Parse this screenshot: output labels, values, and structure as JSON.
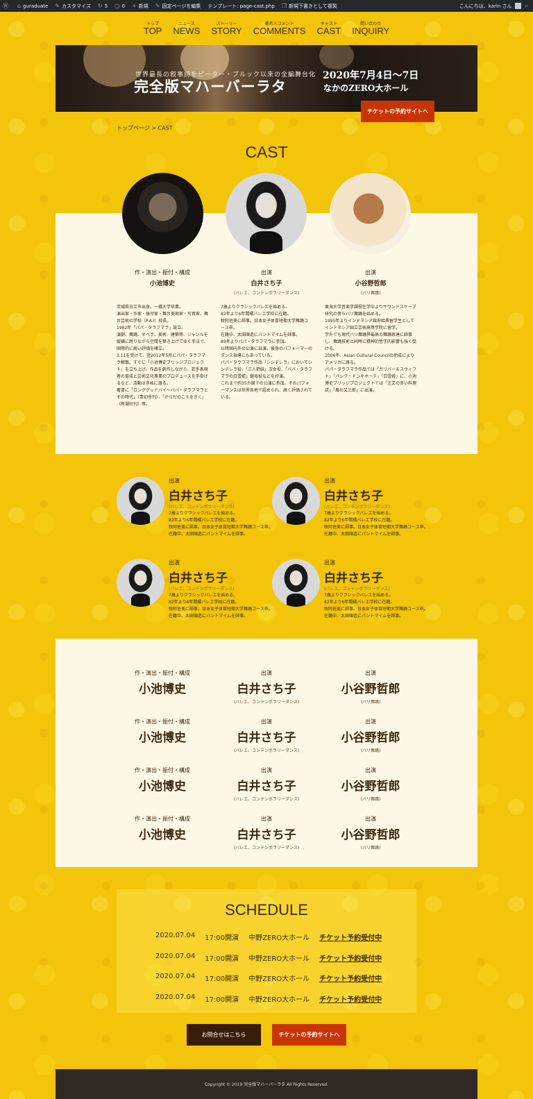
{
  "adminbar": {
    "site": "guraduate",
    "customize": "カスタマイズ",
    "updates": "5",
    "comments": "0",
    "new": "新規",
    "edit": "固定ページを編集",
    "template": "テンプレート: page-cast.php",
    "duplicate": "新規下書きとして複製",
    "greeting": "こんにちは、karin さん"
  },
  "nav": [
    {
      "jp": "トップ",
      "en": "TOP"
    },
    {
      "jp": "ニュース",
      "en": "NEWS"
    },
    {
      "jp": "ストーリー",
      "en": "STORY"
    },
    {
      "jp": "著名人コメント",
      "en": "COMMENTS"
    },
    {
      "jp": "キャスト",
      "en": "CAST"
    },
    {
      "jp": "問い合わせ",
      "en": "INQUIRY"
    }
  ],
  "hero": {
    "subtitle": "世界最長の叙事詩をピーター・ブルック以来の全編舞台化",
    "title": "完全版マハーバーラタ",
    "date": "2020年7月4日〜7日",
    "venue": "なかのZERO大ホール",
    "ticket_label": "チケットの予約サイトへ"
  },
  "breadcrumb": "トップページ > CAST",
  "cast_title": "CAST",
  "cast_main": [
    {
      "role": "作・演出・振付・構成",
      "name": "小池博史",
      "genre": "",
      "bio": "茨城県日立市出身。一橋大学卒業。\n演出家・作家・振付家・舞台美術家・写真家、舞台芸術の学校（P.A.I）校長。\n1982年「パパ・タラフマラ」設立。\n演劇、舞踊、オペラ、美術、建築等、ジャンルを縦横に跨りながら空間を築き上げてゆく手法で、国際的に高い評価を確立。\n3.11を受けて、翌2012年5月にパパ・タラフマラ解散。すぐに「小池博史ブリッジプロジェクト」を立ち上げ、作品を創作しながら、若手表現者の育成と芸術文化事業のプロデュースを手掛けるなど、活動は多岐に渡る。\n著書に「ロンググッドバイ〜パパ・タラフマラとその時代」（青幻舎刊）、「からだのこえをきく」（新潮社刊）等。"
    },
    {
      "role": "出演",
      "name": "白井さち子",
      "genre": "(バレエ、コンテンポラリーダンス)",
      "bio": "7歳よりクラシックバレエを始める。\n82年より6年間橘バレエ学校に在籍。\n牧阿佐美に師事。日本女子体育短期大学舞踊コース卒。\n在籍中、太田順造にパントマイムを師事。\n89年よりパパ・タラフマラに参加。\n以降国内外の公演に出演。後身のパフォーマーのダンス指導にもあっている。\nパパ・タラフマラ作品「シンデレラ」においてシンデレラ役、「三人姉妹」次女役、「パパ・タラフマラの白雪姫」継母役などを好演。\nこれまで約35カ国での公演に参加。そのパフォーマンスは世界各地で認められ、高く評価されている。"
    },
    {
      "role": "出演",
      "name": "小谷野哲郎",
      "genre": "(バリ舞踊)",
      "bio": "東海大学音楽学課程在学中よりサウンドスケープ研究の傍らバリ舞踊を始める。\n1995年よりインドネシア政府給費留学生としてインドネシア国立芸術高等学院に留学。\n学外でも現代バリ舞踊界最高の舞踊家達に師事し、舞踊技術と同時に精神的哲学的影響も強く受ける。\n2006年、Asian Cultural Councilの助成によりアメリカに渡る。\nパパ・タラフマラ作品では「ガリバー＆スウィフト」「パンク・ドンキホーテ」「白雪姫」に、小池博史ブリッジプロジェクトでは「注文の多い料理店」「風の又三郎」に出演。"
    }
  ],
  "cast_grid": [
    {
      "role": "出演",
      "name": "白井さち子",
      "genre": "(バレエ、コンテンポラリーダンス)",
      "bio": "7歳よりクラシックバレエを始める。\n82年より6年間橘バレエ学校に在籍。\n牧阿佐美に師事。日本女子体育短期大学舞踊コース卒。\n在籍中、太田順造にパントマイムを師事。"
    },
    {
      "role": "出演",
      "name": "白井さち子",
      "genre": "(バレエ、コンテンポラリーダンス)",
      "bio": "7歳よりクラシックバレエを始める。\n82年より6年間橘バレエ学校に在籍。\n牧阿佐美に師事。日本女子体育短期大学舞踊コース卒。\n在籍中、太田順造にパントマイムを師事。"
    },
    {
      "role": "出演",
      "name": "白井さち子",
      "genre": "(バレエ、コンテンポラリーダンス)",
      "bio": "7歳よりクラシックバレエを始める。\n82年より6年間橘バレエ学校に在籍。\n牧阿佐美に師事。日本女子体育短期大学舞踊コース卒。\n在籍中、太田順造にパントマイムを師事。"
    },
    {
      "role": "出演",
      "name": "白井さち子",
      "genre": "(バレエ、コンテンポラリーダンス)",
      "bio": "7歳よりクラシックバレエを始める。\n82年より6年間橘バレエ学校に在籍。\n牧阿佐美に師事。日本女子体育短期大学舞踊コース卒。\n在籍中、太田順造にパントマイムを師事。"
    }
  ],
  "names_grid": [
    [
      {
        "role": "作・演出・振付・構成",
        "name": "小池博史",
        "genre": ""
      },
      {
        "role": "出演",
        "name": "白井さち子",
        "genre": "(バレエ、コンテンポラリーダンス)"
      },
      {
        "role": "出演",
        "name": "小谷野哲郎",
        "genre": "(バリ舞踊)"
      }
    ],
    [
      {
        "role": "作・演出・振付・構成",
        "name": "小池博史",
        "genre": ""
      },
      {
        "role": "出演",
        "name": "白井さち子",
        "genre": "(バレエ、コンテンポラリーダンス)"
      },
      {
        "role": "出演",
        "name": "小谷野哲郎",
        "genre": "(バリ舞踊)"
      }
    ],
    [
      {
        "role": "作・演出・振付・構成",
        "name": "小池博史",
        "genre": ""
      },
      {
        "role": "出演",
        "name": "白井さち子",
        "genre": "(バレエ、コンテンポラリーダンス)"
      },
      {
        "role": "出演",
        "name": "小谷野哲郎",
        "genre": "(バリ舞踊)"
      }
    ],
    [
      {
        "role": "作・演出・振付・構成",
        "name": "小池博史",
        "genre": ""
      },
      {
        "role": "出演",
        "name": "白井さち子",
        "genre": "(バレエ、コンテンポラリーダンス)"
      },
      {
        "role": "出演",
        "name": "小谷野哲郎",
        "genre": "(バリ舞踊)"
      }
    ]
  ],
  "schedule": {
    "title": "SCHEDULE",
    "rows": [
      {
        "date": "2020.07.04",
        "time": "17:00開演",
        "venue": "中野ZERO大ホール",
        "link": "チケット予約受付中"
      },
      {
        "date": "2020.07.04",
        "time": "17:00開演",
        "venue": "中野ZERO大ホール",
        "link": "チケット予約受付中"
      },
      {
        "date": "2020.07.04",
        "time": "17:00開演",
        "venue": "中野ZERO大ホール",
        "link": "チケット予約受付中"
      },
      {
        "date": "2020.07.04",
        "time": "17:00開演",
        "venue": "中野ZERO大ホール",
        "link": "チケット予約受付中"
      }
    ]
  },
  "buttons": {
    "contact": "お問合せはこちら",
    "ticket": "チケットの予約サイトへ"
  },
  "footer": "Copyright © 2019 完全版マハーバーラタ All Rights Reserved.",
  "colors": {
    "background": "#f2c40a",
    "panel": "#fdf8e6",
    "accent": "#c93405",
    "text": "#3b2a10",
    "footer": "#2f2a26"
  }
}
